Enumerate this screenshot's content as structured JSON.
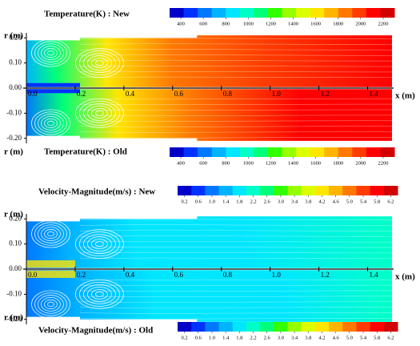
{
  "chart_data": [
    {
      "type": "contour",
      "title": "Temperature(K) : New",
      "subtitle": "Temperature(K) : Old",
      "xlabel": "x (m)",
      "ylabel": "r (m)",
      "xlim": [
        0,
        1.5
      ],
      "ylim": [
        -0.22,
        0.22
      ],
      "xticks": [
        {
          "value": 0,
          "label": "0.0"
        },
        0.2,
        0.4,
        0.6,
        0.8,
        {
          "value": 1,
          "label": "1.0"
        },
        1.2,
        1.4
      ],
      "yticks": [
        {
          "value": 0.2,
          "label": "0.20"
        },
        {
          "value": 0.1,
          "label": "0.10"
        },
        {
          "value": 0,
          "label": "0.00"
        },
        {
          "value": -0.1,
          "label": "-0.10"
        },
        {
          "value": -0.2,
          "label": "-0.20"
        }
      ],
      "clim": [
        300,
        2300
      ],
      "cticks": [
        400,
        600,
        800,
        1000,
        1200,
        1400,
        1600,
        1800,
        2000,
        2200
      ],
      "colormap": [
        "#0000c8",
        "#0032ff",
        "#0078ff",
        "#00b4ff",
        "#00e6ff",
        "#00ffc8",
        "#00ff78",
        "#32ff00",
        "#96ff00",
        "#dcff00",
        "#ffe600",
        "#ffb400",
        "#ff7800",
        "#ff3c00",
        "#ff0000",
        "#d20000"
      ]
    },
    {
      "type": "contour",
      "title": "Velocity-Magnitude(m/s) : New",
      "subtitle": "Velocity-Magnitude(m/s) : Old",
      "xlabel": "x (m)",
      "ylabel": "r (m)",
      "xlim": [
        0,
        1.5
      ],
      "ylim": [
        -0.22,
        0.22
      ],
      "xticks": [
        {
          "value": 0,
          "label": "0.0"
        },
        0.2,
        0.4,
        0.6,
        0.8,
        {
          "value": 1,
          "label": "1.0"
        },
        1.2,
        1.4
      ],
      "yticks": [
        {
          "value": 0.2,
          "label": "0.20"
        },
        {
          "value": 0.1,
          "label": "0.10"
        },
        {
          "value": 0,
          "label": "0.00"
        },
        {
          "value": -0.1,
          "label": "-0.10"
        },
        {
          "value": -0.2,
          "label": "-0.20"
        }
      ],
      "clim": [
        0,
        6.4
      ],
      "cticks": [
        0.2,
        0.6,
        {
          "value": 1,
          "label": "1.0"
        },
        1.4,
        1.8,
        2.2,
        2.6,
        {
          "value": 3,
          "label": "3.0"
        },
        3.4,
        3.8,
        4.2,
        4.6,
        {
          "value": 5,
          "label": "5.0"
        },
        5.4,
        5.8,
        6.2
      ],
      "colormap": [
        "#0000c8",
        "#0032ff",
        "#0078ff",
        "#00b4ff",
        "#00e6ff",
        "#00ffc8",
        "#00ff78",
        "#32ff00",
        "#96ff00",
        "#dcff00",
        "#ffe600",
        "#ffb400",
        "#ff7800",
        "#ff3c00",
        "#ff0000",
        "#d20000"
      ]
    }
  ]
}
